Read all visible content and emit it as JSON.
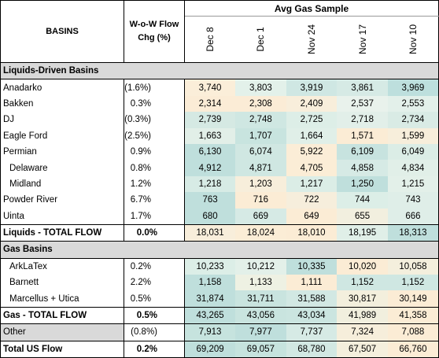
{
  "header": {
    "group_label": "Avg Gas Sample",
    "basins_label": "BASINS",
    "chg_label_line1": "W-o-W Flow",
    "chg_label_line2": "Chg (%)",
    "dates": [
      "Dec 8",
      "Dec 1",
      "Nov 24",
      "Nov 17",
      "Nov 10"
    ]
  },
  "sections": {
    "liquids": "Liquids-Driven Basins",
    "gas": "Gas Basins"
  },
  "liquids_rows": [
    {
      "name": "Anadarko",
      "chg": "(1.6%)",
      "values": [
        "3,740",
        "3,803",
        "3,919",
        "3,861",
        "3,969"
      ],
      "colors": [
        "#fbeed9",
        "#e3f1ea",
        "#cfe7e3",
        "#d6eae5",
        "#bddfdd"
      ]
    },
    {
      "name": "Bakken",
      "chg": "0.3%",
      "values": [
        "2,314",
        "2,308",
        "2,409",
        "2,537",
        "2,553"
      ],
      "colors": [
        "#fbecd6",
        "#fbecd6",
        "#f8eedb",
        "#e9f2ec",
        "#e3f0ea"
      ]
    },
    {
      "name": "DJ",
      "chg": "(0.3%)",
      "values": [
        "2,739",
        "2,748",
        "2,725",
        "2,718",
        "2,734"
      ],
      "colors": [
        "#d5e9e3",
        "#cfe7e2",
        "#ddeee7",
        "#e2efe9",
        "#d9ebe5"
      ]
    },
    {
      "name": "Eagle Ford",
      "chg": "(2.5%)",
      "values": [
        "1,663",
        "1,707",
        "1,664",
        "1,571",
        "1,599"
      ],
      "colors": [
        "#e2efe8",
        "#c8e4df",
        "#e0efe8",
        "#fbecd5",
        "#f7eedb"
      ]
    },
    {
      "name": "Permian",
      "chg": "0.9%",
      "values": [
        "6,130",
        "6,074",
        "5,922",
        "6,109",
        "6,049"
      ],
      "colors": [
        "#bfdfdc",
        "#d0e7e2",
        "#fbedd7",
        "#c7e3df",
        "#dbede6"
      ]
    },
    {
      "name": "Delaware",
      "chg": "0.8%",
      "sub": true,
      "values": [
        "4,912",
        "4,871",
        "4,705",
        "4,858",
        "4,834"
      ],
      "colors": [
        "#bfdfdc",
        "#cfe7e2",
        "#fbedd6",
        "#d6eae5",
        "#e1efe8"
      ]
    },
    {
      "name": "Midland",
      "chg": "1.2%",
      "sub": true,
      "values": [
        "1,218",
        "1,203",
        "1,217",
        "1,250",
        "1,215"
      ],
      "colors": [
        "#d7ebe5",
        "#f7eedb",
        "#dbede6",
        "#bfdfdc",
        "#e3f0e9"
      ]
    },
    {
      "name": "Powder River",
      "chg": "6.7%",
      "values": [
        "763",
        "716",
        "722",
        "744",
        "743"
      ],
      "colors": [
        "#bfdfdc",
        "#fbecd5",
        "#f6eedc",
        "#dceee7",
        "#dfeee8"
      ]
    },
    {
      "name": "Uinta",
      "chg": "1.7%",
      "values": [
        "680",
        "669",
        "649",
        "655",
        "666"
      ],
      "colors": [
        "#bfdfdc",
        "#d6eae5",
        "#fbecd5",
        "#f2efdf",
        "#dfeee8"
      ]
    }
  ],
  "liquids_total": {
    "name": "Liquids - TOTAL FLOW",
    "chg": "0.0%",
    "values": [
      "18,031",
      "18,024",
      "18,010",
      "18,195",
      "18,313"
    ],
    "colors": [
      "#f8eedb",
      "#fbedd6",
      "#fbecd5",
      "#e0efe8",
      "#bfdfdc"
    ]
  },
  "gas_rows": [
    {
      "name": "ArkLaTex",
      "chg": "0.2%",
      "sub": true,
      "values": [
        "10,233",
        "10,212",
        "10,335",
        "10,020",
        "10,058"
      ],
      "colors": [
        "#dceee7",
        "#e3f0e9",
        "#bfdfdc",
        "#fbecd5",
        "#f4efdd"
      ]
    },
    {
      "name": "Barnett",
      "chg": "2.2%",
      "sub": true,
      "values": [
        "1,158",
        "1,133",
        "1,111",
        "1,152",
        "1,152"
      ],
      "colors": [
        "#bfdfdc",
        "#eef1e3",
        "#fbecd5",
        "#cfe7e2",
        "#cfe7e2"
      ]
    },
    {
      "name": "Marcellus + Utica",
      "chg": "0.5%",
      "sub": true,
      "values": [
        "31,874",
        "31,711",
        "31,588",
        "30,817",
        "30,149"
      ],
      "colors": [
        "#bfdfdc",
        "#c9e4df",
        "#d2e8e3",
        "#f3efdd",
        "#fbecd5"
      ]
    }
  ],
  "gas_total": {
    "name": "Gas - TOTAL FLOW",
    "chg": "0.5%",
    "values": [
      "43,265",
      "43,056",
      "43,034",
      "41,989",
      "41,358"
    ],
    "colors": [
      "#bfdfdc",
      "#c9e4df",
      "#cbe5e0",
      "#f1efde",
      "#fbecd5"
    ]
  },
  "other": {
    "name": "Other",
    "chg": "(0.8%)",
    "values": [
      "7,913",
      "7,977",
      "7,737",
      "7,324",
      "7,088"
    ],
    "colors": [
      "#c6e3de",
      "#bfdfdc",
      "#d6eae5",
      "#f6eedb",
      "#fbecd5"
    ]
  },
  "total_us": {
    "name": "Total US Flow",
    "chg": "0.2%",
    "values": [
      "69,209",
      "69,057",
      "68,780",
      "67,507",
      "66,760"
    ],
    "colors": [
      "#bfdfdc",
      "#c6e3de",
      "#d2e8e3",
      "#f4efdd",
      "#fbecd5"
    ]
  }
}
